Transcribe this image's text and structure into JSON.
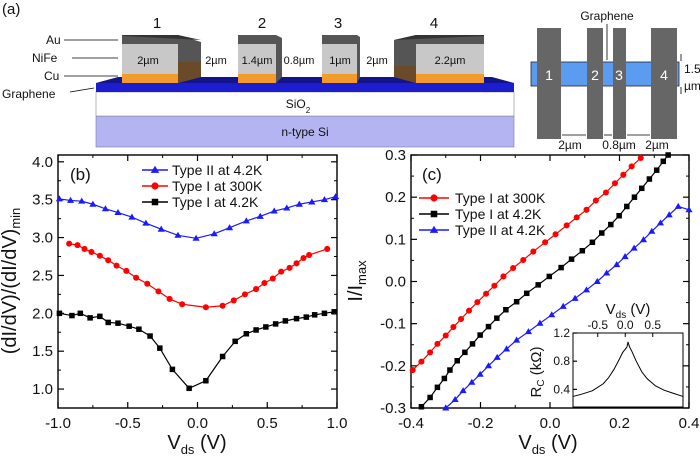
{
  "panel_a": {
    "label": "(a)",
    "electrode_numbers": [
      "1",
      "2",
      "3",
      "4"
    ],
    "layers": {
      "au": "Au",
      "nife": "NiFe",
      "cu": "Cu",
      "graphene": "Graphene"
    },
    "sio2": "SiO",
    "sio2_sub": "2",
    "substrate": "n-type Si",
    "dims": [
      "2µm",
      "2µm",
      "1.4µm",
      "0.8µm",
      "1µm",
      "2µm",
      "2.2µm"
    ],
    "top_view": {
      "graphene_label": "Graphene",
      "width_label_1": "1.5",
      "width_label_2": "µm",
      "gaps": [
        "2µm",
        "0.8µm",
        "2µm"
      ]
    },
    "colors": {
      "au": "#555555",
      "nife": "#c8c8c8",
      "cu": "#f39a2c",
      "graphene": "#1c1ca8",
      "sio2": "#ffffff",
      "si": "#b4b4f2",
      "strip": "#5b9bf0",
      "bars": "#666666"
    }
  },
  "chart_data": [
    {
      "panel_label": "(b)",
      "type": "line",
      "xlabel": "V",
      "xlabel_sub": "ds",
      "xlabel_unit": " (V)",
      "ylabel": "(dI/dV)/(dI/dV)",
      "ylabel_sub": "min",
      "xlim": [
        -1.0,
        1.0
      ],
      "ylim": [
        0.75,
        4.09
      ],
      "xticks": [
        "-1.0",
        "-0.5",
        "0.0",
        "0.5",
        "1.0"
      ],
      "yticks": [
        "1.0",
        "1.5",
        "2.0",
        "2.5",
        "3.0",
        "3.5",
        "4.0"
      ],
      "legend_position": "top-center",
      "series": [
        {
          "name": "Type II at 4.2K",
          "color": "#1a1aff",
          "marker": "triangle",
          "x": [
            -0.99,
            -0.91,
            -0.83,
            -0.75,
            -0.66,
            -0.57,
            -0.47,
            -0.37,
            -0.26,
            -0.14,
            -0.01,
            0.12,
            0.23,
            0.35,
            0.45,
            0.55,
            0.64,
            0.73,
            0.82,
            0.91,
            0.99
          ],
          "y": [
            3.51,
            3.49,
            3.48,
            3.44,
            3.38,
            3.33,
            3.27,
            3.19,
            3.11,
            3.03,
            2.99,
            3.05,
            3.13,
            3.22,
            3.28,
            3.35,
            3.39,
            3.44,
            3.47,
            3.5,
            3.54
          ]
        },
        {
          "name": "Type I at 300K",
          "color": "#ff0000",
          "marker": "circle",
          "x": [
            -0.92,
            -0.86,
            -0.81,
            -0.76,
            -0.7,
            -0.64,
            -0.58,
            -0.51,
            -0.44,
            -0.36,
            -0.28,
            -0.2,
            -0.11,
            0.06,
            0.18,
            0.26,
            0.34,
            0.42,
            0.48,
            0.54,
            0.6,
            0.66,
            0.71,
            0.76,
            0.8,
            0.93
          ],
          "y": [
            2.92,
            2.9,
            2.85,
            2.81,
            2.76,
            2.7,
            2.63,
            2.56,
            2.47,
            2.39,
            2.29,
            2.19,
            2.12,
            2.08,
            2.1,
            2.17,
            2.25,
            2.32,
            2.4,
            2.46,
            2.55,
            2.6,
            2.66,
            2.73,
            2.77,
            2.85
          ]
        },
        {
          "name": "Type I at 4.2K",
          "color": "#000000",
          "marker": "square",
          "x": [
            -0.99,
            -0.9,
            -0.84,
            -0.77,
            -0.7,
            -0.64,
            -0.57,
            -0.49,
            -0.42,
            -0.34,
            -0.27,
            -0.18,
            -0.06,
            0.06,
            0.18,
            0.27,
            0.35,
            0.42,
            0.49,
            0.56,
            0.63,
            0.71,
            0.78,
            0.84,
            0.91,
            0.98
          ],
          "y": [
            2.0,
            1.97,
            2.0,
            1.94,
            1.96,
            1.88,
            1.87,
            1.83,
            1.79,
            1.7,
            1.54,
            1.26,
            1.01,
            1.11,
            1.43,
            1.63,
            1.73,
            1.78,
            1.82,
            1.86,
            1.9,
            1.93,
            1.95,
            1.98,
            2.0,
            2.02
          ]
        }
      ]
    },
    {
      "panel_label": "(c)",
      "type": "line",
      "xlabel": "V",
      "xlabel_sub": "ds",
      "xlabel_unit": " (V)",
      "ylabel": "I/I",
      "ylabel_sub": "max",
      "xlim": [
        -0.4,
        0.4
      ],
      "ylim": [
        -0.3,
        0.3
      ],
      "xticks": [
        "-0.4",
        "-0.2",
        "0.0",
        "0.2",
        "0.4"
      ],
      "yticks": [
        "-0.3",
        "-0.2",
        "-0.1",
        "0.0",
        "0.1",
        "0.2",
        "0.3"
      ],
      "legend_position": "top-left",
      "series": [
        {
          "name": "Type I at 300K",
          "color": "#ff0000",
          "marker": "circle",
          "x": [
            -0.395,
            -0.37,
            -0.345,
            -0.324,
            -0.3,
            -0.278,
            -0.256,
            -0.233,
            -0.209,
            -0.184,
            -0.16,
            -0.134,
            -0.106,
            -0.077,
            -0.048,
            -0.014,
            0.016,
            0.048,
            0.077,
            0.105,
            0.132,
            0.161,
            0.187,
            0.211,
            0.235,
            0.261
          ],
          "y": [
            -0.21,
            -0.19,
            -0.168,
            -0.148,
            -0.128,
            -0.108,
            -0.089,
            -0.069,
            -0.049,
            -0.029,
            -0.01,
            0.012,
            0.032,
            0.051,
            0.071,
            0.093,
            0.112,
            0.133,
            0.152,
            0.17,
            0.192,
            0.211,
            0.233,
            0.253,
            0.273,
            0.293
          ]
        },
        {
          "name": "Type I at 4.2K",
          "color": "#000000",
          "marker": "square",
          "x": [
            -0.37,
            -0.345,
            -0.324,
            -0.304,
            -0.288,
            -0.267,
            -0.245,
            -0.223,
            -0.201,
            -0.177,
            -0.153,
            -0.127,
            -0.096,
            -0.067,
            -0.034,
            -0.002,
            0.032,
            0.062,
            0.093,
            0.122,
            0.149,
            0.175,
            0.199,
            0.221,
            0.243,
            0.264,
            0.286,
            0.307,
            0.326,
            0.34
          ],
          "y": [
            -0.297,
            -0.275,
            -0.251,
            -0.23,
            -0.21,
            -0.188,
            -0.168,
            -0.148,
            -0.127,
            -0.107,
            -0.087,
            -0.067,
            -0.048,
            -0.028,
            -0.008,
            0.012,
            0.033,
            0.053,
            0.073,
            0.093,
            0.115,
            0.135,
            0.156,
            0.178,
            0.2,
            0.221,
            0.243,
            0.264,
            0.285,
            0.3
          ]
        },
        {
          "name": "Type II at 4.2K",
          "color": "#1a1aff",
          "marker": "triangle",
          "x": [
            -0.3,
            -0.273,
            -0.25,
            -0.225,
            -0.201,
            -0.177,
            -0.152,
            -0.125,
            -0.096,
            -0.062,
            -0.029,
            0.005,
            0.038,
            0.072,
            0.105,
            0.136,
            0.163,
            0.192,
            0.216,
            0.242,
            0.269,
            0.293,
            0.318,
            0.343,
            0.369,
            0.4
          ],
          "y": [
            -0.3,
            -0.28,
            -0.259,
            -0.239,
            -0.22,
            -0.2,
            -0.18,
            -0.16,
            -0.139,
            -0.119,
            -0.099,
            -0.079,
            -0.059,
            -0.04,
            -0.02,
            0.0,
            0.02,
            0.04,
            0.059,
            0.079,
            0.099,
            0.119,
            0.139,
            0.158,
            0.178,
            0.17
          ]
        }
      ]
    },
    {
      "panel_label": "inset",
      "type": "line",
      "xlabel": "V",
      "xlabel_sub": "ds",
      "xlabel_unit": " (V)",
      "ylabel": "R",
      "ylabel_sub": "C",
      "ylabel_unit": " (kΩ)",
      "xlim": [
        -0.95,
        1.05
      ],
      "ylim": [
        0.15,
        1.2
      ],
      "xticks": [
        "-0.5",
        "0.0",
        "0.5"
      ],
      "yticks": [
        "0.4",
        "0.8",
        "1.2"
      ],
      "series": [
        {
          "color": "#000000",
          "x": [
            -0.95,
            -0.8,
            -0.6,
            -0.4,
            -0.3,
            -0.2,
            -0.1,
            -0.05,
            0.0,
            0.03,
            0.05,
            0.08,
            0.12,
            0.2,
            0.3,
            0.4,
            0.55,
            0.7,
            0.85,
            1.05
          ],
          "y": [
            0.3,
            0.33,
            0.38,
            0.48,
            0.57,
            0.69,
            0.84,
            0.92,
            0.97,
            1.0,
            1.07,
            1.0,
            0.94,
            0.8,
            0.65,
            0.55,
            0.45,
            0.39,
            0.35,
            0.3
          ]
        }
      ]
    }
  ]
}
